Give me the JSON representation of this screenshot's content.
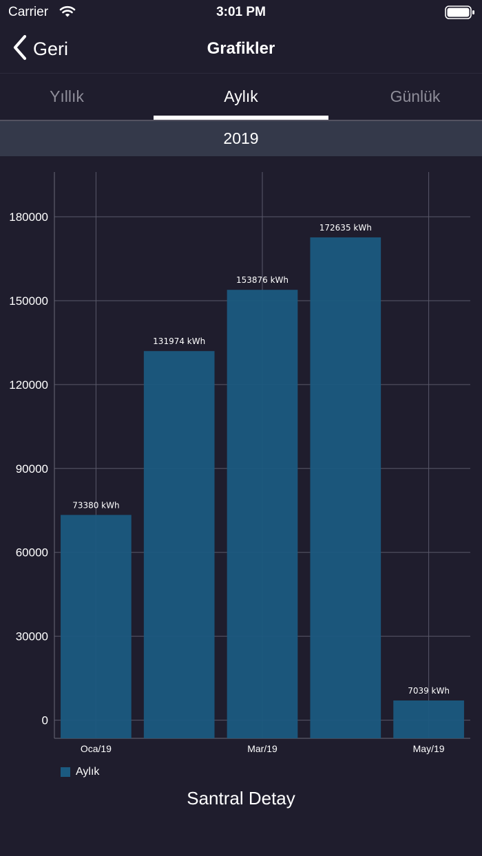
{
  "status_bar": {
    "carrier": "Carrier",
    "time": "3:01 PM"
  },
  "nav": {
    "back_label": "Geri",
    "title": "Grafikler"
  },
  "tabs": [
    {
      "label": "Yıllık",
      "active": false
    },
    {
      "label": "Aylık",
      "active": true
    },
    {
      "label": "Günlük",
      "active": false
    }
  ],
  "period": "2019",
  "colors": {
    "bar": "#1b5a80",
    "background": "#1f1d2d",
    "grid": "#5a596a",
    "year_bar": "#34394a"
  },
  "chart_data": {
    "type": "bar",
    "x_tick_labels": [
      "Oca/19",
      "Mar/19",
      "May/19"
    ],
    "ylim": [
      -6500,
      196000
    ],
    "yticks": [
      0,
      30000,
      60000,
      90000,
      120000,
      150000,
      180000
    ],
    "grid": true,
    "legend_position": "bottom-left",
    "series": [
      {
        "name": "Aylık",
        "values": [
          73380,
          131974,
          153876,
          172635,
          7039
        ],
        "labels": [
          "73380 kWh",
          "131974 kWh",
          "153876 kWh",
          "172635 kWh",
          "7039 kWh"
        ]
      }
    ]
  },
  "footer_title": "Santral Detay"
}
